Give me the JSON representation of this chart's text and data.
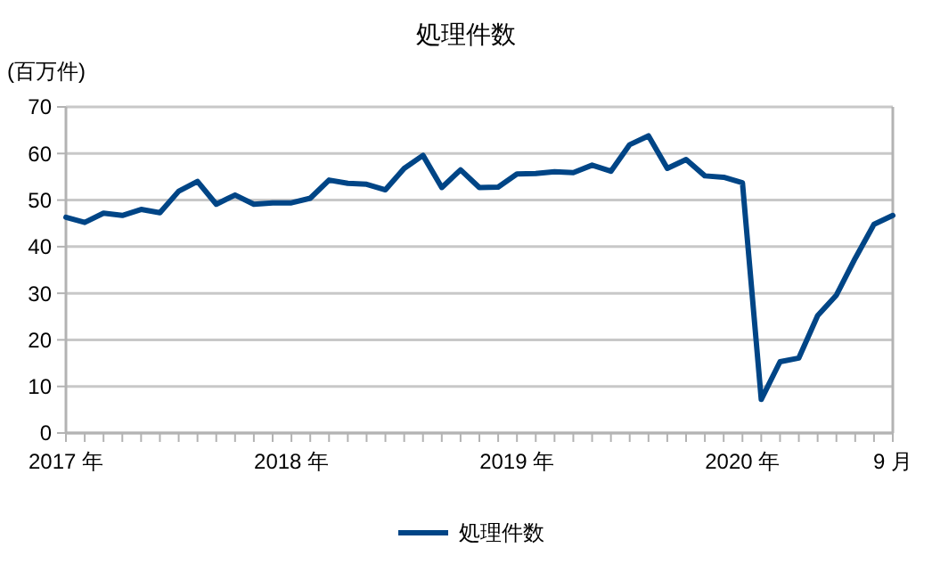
{
  "chart_data": {
    "type": "line",
    "title": "処理件数",
    "ylabel": "(百万件)",
    "categories": [
      "2017 年",
      null,
      null,
      null,
      null,
      null,
      null,
      null,
      null,
      null,
      null,
      null,
      "2018 年",
      null,
      null,
      null,
      null,
      null,
      null,
      null,
      null,
      null,
      null,
      null,
      "2019 年",
      null,
      null,
      null,
      null,
      null,
      null,
      null,
      null,
      null,
      null,
      null,
      "2020 年",
      null,
      null,
      null,
      null,
      null,
      null,
      null,
      "9 月"
    ],
    "series": [
      {
        "name": "処理件数",
        "color": "#004586",
        "values": [
          46.3,
          45.2,
          47.2,
          46.7,
          48,
          47.3,
          51.9,
          54,
          49.1,
          51.1,
          49.1,
          49.4,
          49.4,
          50.4,
          54.3,
          53.6,
          53.4,
          52.2,
          56.8,
          59.6,
          52.7,
          56.5,
          52.7,
          52.8,
          55.6,
          55.7,
          56.1,
          55.9,
          57.5,
          56.2,
          61.9,
          63.8,
          56.8,
          58.7,
          55.2,
          54.9,
          53.7,
          7.2,
          15.3,
          16.1,
          25.2,
          29.6,
          37.5,
          44.8,
          46.7
        ]
      }
    ],
    "ylim": [
      0,
      70
    ],
    "yticks": [
      0,
      10,
      20,
      30,
      40,
      50,
      60,
      70
    ],
    "grid": "y",
    "legend": "bottom",
    "marker": "none",
    "line_style": "solid"
  }
}
